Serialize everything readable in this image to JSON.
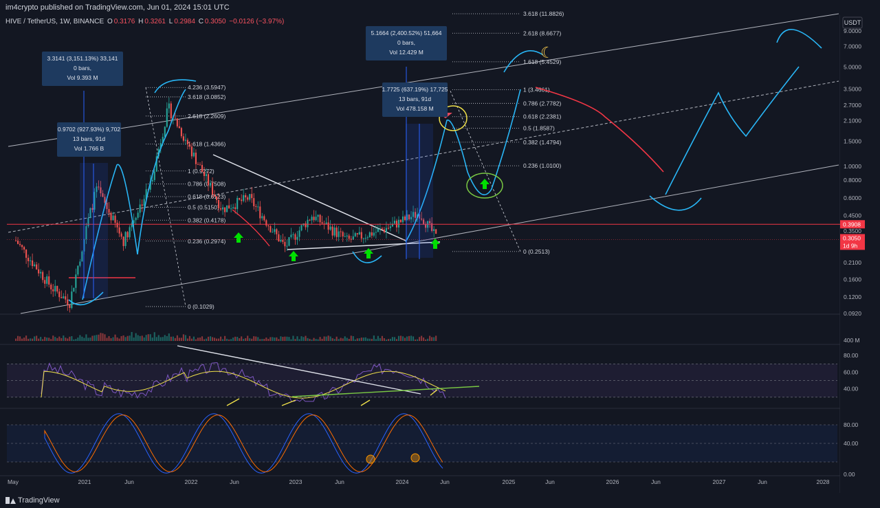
{
  "header": {
    "published": "im4crypto published on TradingView.com, Jun 01, 2024 15:01 UTC"
  },
  "legend": {
    "symbol": "HIVE / TetherUS, 1W, BINANCE",
    "o_label": "O",
    "o": "0.3176",
    "h_label": "H",
    "h": "0.3261",
    "l_label": "L",
    "l": "0.2984",
    "c_label": "C",
    "c": "0.3050",
    "change": "−0.0126 (−3.97%)"
  },
  "currency_button": "USDT",
  "footer": {
    "brand": "TradingView"
  },
  "colors": {
    "bg": "#131722",
    "up": "#26a69a",
    "down": "#ef5350",
    "cyan": "#29b6f6",
    "fib": "#d1d4dc",
    "rsi": "#7e57c2",
    "stoch_k": "#2962ff",
    "stoch_d": "#ff6d00",
    "red_line": "#f23645"
  },
  "chart_data": [
    {
      "type": "candlestick",
      "title": "HIVE / TetherUS, 1W, BINANCE",
      "y_scale": "log",
      "ylim": [
        0.092,
        11.88
      ],
      "y_ticks": [
        "9.0000",
        "7.0000",
        "5.0000",
        "3.5000",
        "2.7000",
        "2.1000",
        "1.5000",
        "1.0000",
        "0.8000",
        "0.6000",
        "0.4500",
        "0.3500",
        "0.2700",
        "0.2100",
        "0.1600",
        "0.1200",
        "0.0920"
      ],
      "price_labels": [
        {
          "text": "0.3908",
          "color": "#f23645"
        },
        {
          "text": "0.3050",
          "color": "#f23645"
        },
        {
          "text": "1d 9h",
          "color": "#f23645"
        }
      ],
      "x_ticks": [
        "May",
        "2021",
        "Jun",
        "2022",
        "Jun",
        "2023",
        "Jun",
        "2024",
        "Jun",
        "2025",
        "Jun",
        "2026",
        "Jun",
        "2027",
        "Jun",
        "2028"
      ],
      "price_path_key_points": [
        {
          "date": "2020-06",
          "price": 0.3
        },
        {
          "date": "2020-10",
          "price": 0.14
        },
        {
          "date": "2020-12",
          "price": 0.11
        },
        {
          "date": "2021-02",
          "price": 0.4
        },
        {
          "date": "2021-03",
          "price": 0.7
        },
        {
          "date": "2021-06",
          "price": 0.3
        },
        {
          "date": "2021-09",
          "price": 0.75
        },
        {
          "date": "2021-11",
          "price": 2.6
        },
        {
          "date": "2022-01",
          "price": 1.5
        },
        {
          "date": "2022-05",
          "price": 0.5
        },
        {
          "date": "2022-08",
          "price": 0.6
        },
        {
          "date": "2022-12",
          "price": 0.27
        },
        {
          "date": "2023-03",
          "price": 0.45
        },
        {
          "date": "2023-07",
          "price": 0.3
        },
        {
          "date": "2023-11",
          "price": 0.36
        },
        {
          "date": "2024-03",
          "price": 0.47
        },
        {
          "date": "2024-05",
          "price": 0.305
        }
      ],
      "fib_left": [
        {
          "level": "4.236 (3.5947)"
        },
        {
          "level": "3.618 (3.0852)"
        },
        {
          "level": "2.618 (2.2609)"
        },
        {
          "level": "1.618 (1.4366)"
        },
        {
          "level": "1 (0.9272)"
        },
        {
          "level": "0.786 (0.7508)"
        },
        {
          "level": "0.618 (0.6123)"
        },
        {
          "level": "0.5 (0.5150)"
        },
        {
          "level": "0.382 (0.4178)"
        },
        {
          "level": "0.236 (0.2974)"
        },
        {
          "level": "0 (0.1029)"
        }
      ],
      "fib_right": [
        {
          "level": "3.618 (11.8826)"
        },
        {
          "level": "2.618 (8.6677)"
        },
        {
          "level": "1.618 (5.4529)"
        },
        {
          "level": "1 (3.4661)"
        },
        {
          "level": "0.786 (2.7782)"
        },
        {
          "level": "0.618 (2.2381)"
        },
        {
          "level": "0.5 (1.8587)"
        },
        {
          "level": "0.382 (1.4794)"
        },
        {
          "level": "0.236 (1.0100)"
        },
        {
          "level": "0 (0.2513)"
        }
      ],
      "measure_boxes": [
        {
          "lines": [
            "3.3141 (3,151.13%) 33,141",
            "0 bars,",
            "Vol 9.393 M"
          ]
        },
        {
          "lines": [
            "0.9702 (927.93%) 9,702",
            "13 bars, 91d",
            "Vol 1.766 B"
          ]
        },
        {
          "lines": [
            "5.1664 (2,400.52%) 51,664",
            "0 bars,",
            "Vol 12.429 M"
          ]
        },
        {
          "lines": [
            "1.7725 (637.19%) 17,725",
            "13 bars, 91d",
            "Vol 478.158 M"
          ]
        }
      ]
    },
    {
      "type": "bar",
      "title": "Volume",
      "y_ticks": [
        "400 M"
      ]
    },
    {
      "type": "line",
      "title": "RSI",
      "y_ticks": [
        "80.00",
        "60.00",
        "40.00"
      ]
    },
    {
      "type": "line",
      "title": "Stoch RSI",
      "y_ticks": [
        "80.00",
        "40.00",
        "0.00"
      ]
    }
  ]
}
